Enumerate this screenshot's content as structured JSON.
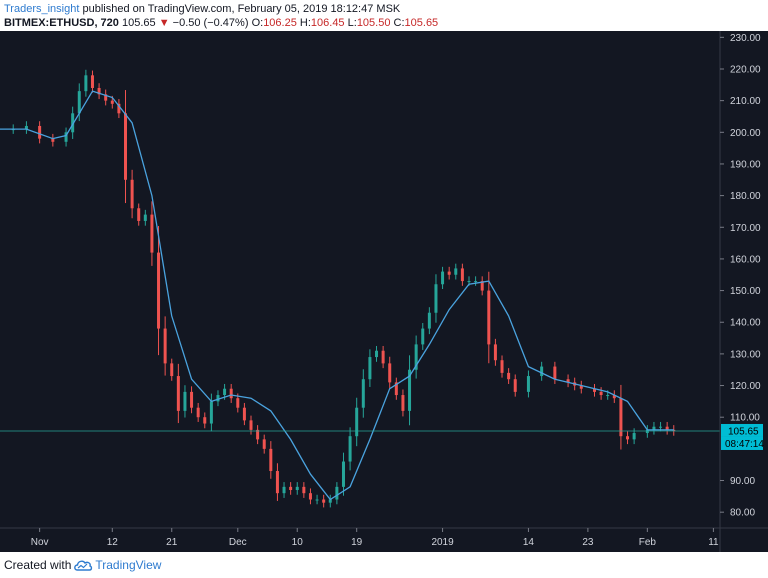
{
  "header": {
    "author": "Traders_insight",
    "published": " published on TradingView.com, February 05, 2019 18:12:47 MSK",
    "symbol": "BITMEX:ETHUSD, 720",
    "last": "105.65",
    "arrow": "▼",
    "change": "−0.50 (−0.47%)",
    "o_label": "O:",
    "o_value": "106.25",
    "h_label": "H:",
    "h_value": "106.45",
    "l_label": "L:",
    "l_value": "105.50",
    "c_label": "C:",
    "c_value": "105.65"
  },
  "footer": {
    "created_with": "Created with",
    "brand": "TradingView",
    "logo_icon": "tradingview-cloud-icon"
  },
  "colors": {
    "background": "#131722",
    "up": "#26a69a",
    "down": "#ef5350",
    "ma": "#4aa3df",
    "price_line": "#26a69a",
    "axis_text": "#d1d4dc",
    "price_badge": "#00bcd4",
    "time_badge": "#00bcd4"
  },
  "chart_data": {
    "type": "candlestick",
    "x_unit": "date (720-minute bars)",
    "x_range": [
      "2018-10-26",
      "2019-02-12"
    ],
    "y_range": [
      75,
      232
    ],
    "y_ticks": [
      "230.00",
      "220.00",
      "210.00",
      "200.00",
      "190.00",
      "180.00",
      "170.00",
      "160.00",
      "150.00",
      "140.00",
      "130.00",
      "120.00",
      "110.00",
      "90.00",
      "80.00"
    ],
    "y_tick_values": [
      230,
      220,
      210,
      200,
      190,
      180,
      170,
      160,
      150,
      140,
      130,
      120,
      110,
      90,
      80
    ],
    "x_ticks": [
      "Nov",
      "12",
      "21",
      "Dec",
      "10",
      "19",
      "2019",
      "14",
      "23",
      "Feb",
      "11"
    ],
    "x_tick_dates": [
      "2018-11-01",
      "2018-11-12",
      "2018-11-21",
      "2018-12-01",
      "2018-12-10",
      "2018-12-19",
      "2019-01-01",
      "2019-01-14",
      "2019-01-23",
      "2019-02-01",
      "2019-02-11"
    ],
    "current_price": 105.65,
    "current_price_label": "105.65",
    "countdown_label": "08:47:14",
    "grid": false,
    "close_series": {
      "dates": [
        "2018-10-26",
        "2018-10-28",
        "2018-10-30",
        "2018-11-01",
        "2018-11-03",
        "2018-11-05",
        "2018-11-06",
        "2018-11-07",
        "2018-11-08",
        "2018-11-09",
        "2018-11-10",
        "2018-11-11",
        "2018-11-12",
        "2018-11-13",
        "2018-11-14",
        "2018-11-15",
        "2018-11-16",
        "2018-11-17",
        "2018-11-18",
        "2018-11-19",
        "2018-11-20",
        "2018-11-21",
        "2018-11-22",
        "2018-11-23",
        "2018-11-24",
        "2018-11-25",
        "2018-11-26",
        "2018-11-27",
        "2018-11-28",
        "2018-11-29",
        "2018-11-30",
        "2018-12-01",
        "2018-12-02",
        "2018-12-03",
        "2018-12-04",
        "2018-12-05",
        "2018-12-06",
        "2018-12-07",
        "2018-12-08",
        "2018-12-09",
        "2018-12-10",
        "2018-12-11",
        "2018-12-12",
        "2018-12-13",
        "2018-12-14",
        "2018-12-15",
        "2018-12-16",
        "2018-12-17",
        "2018-12-18",
        "2018-12-19",
        "2018-12-20",
        "2018-12-21",
        "2018-12-22",
        "2018-12-23",
        "2018-12-24",
        "2018-12-25",
        "2018-12-26",
        "2018-12-27",
        "2018-12-28",
        "2018-12-29",
        "2018-12-30",
        "2018-12-31",
        "2019-01-01",
        "2019-01-02",
        "2019-01-03",
        "2019-01-04",
        "2019-01-05",
        "2019-01-06",
        "2019-01-07",
        "2019-01-08",
        "2019-01-09",
        "2019-01-10",
        "2019-01-11",
        "2019-01-12",
        "2019-01-14",
        "2019-01-16",
        "2019-01-18",
        "2019-01-20",
        "2019-01-21",
        "2019-01-22",
        "2019-01-24",
        "2019-01-25",
        "2019-01-26",
        "2019-01-27",
        "2019-01-28",
        "2019-01-29",
        "2019-01-30",
        "2019-02-01",
        "2019-02-02",
        "2019-02-03",
        "2019-02-04",
        "2019-02-05"
      ],
      "close": [
        201,
        201,
        202,
        198,
        197,
        200,
        206,
        213,
        218,
        214,
        212,
        210,
        209,
        206,
        185,
        176,
        172,
        174,
        162,
        138,
        127,
        123,
        112,
        118,
        113,
        110,
        108,
        115,
        117,
        119,
        116,
        113,
        109,
        106,
        103,
        100,
        93,
        86,
        88,
        87,
        88,
        86,
        84,
        84,
        83,
        84,
        88,
        96,
        104,
        113,
        122,
        129,
        131,
        127,
        121,
        117,
        112,
        125,
        133,
        138,
        143,
        152,
        156,
        155,
        157,
        153,
        153,
        153,
        150,
        133,
        128,
        124,
        122,
        118,
        123,
        126,
        122,
        121,
        120,
        119,
        118,
        117,
        117,
        116,
        104,
        103,
        105,
        106,
        107,
        107,
        106,
        105.65
      ]
    },
    "ma_series": {
      "name": "",
      "dates": [
        "2018-10-26",
        "2018-10-30",
        "2018-11-03",
        "2018-11-05",
        "2018-11-07",
        "2018-11-09",
        "2018-11-12",
        "2018-11-15",
        "2018-11-18",
        "2018-11-21",
        "2018-11-24",
        "2018-11-27",
        "2018-11-30",
        "2018-12-03",
        "2018-12-06",
        "2018-12-09",
        "2018-12-12",
        "2018-12-15",
        "2018-12-18",
        "2018-12-21",
        "2018-12-24",
        "2018-12-27",
        "2018-12-30",
        "2019-01-02",
        "2019-01-05",
        "2019-01-08",
        "2019-01-11",
        "2019-01-14",
        "2019-01-18",
        "2019-01-22",
        "2019-01-26",
        "2019-01-29",
        "2019-02-01",
        "2019-02-05"
      ],
      "values": [
        201,
        201,
        198,
        199,
        206,
        213,
        211,
        203,
        180,
        142,
        122,
        115,
        117,
        116,
        112,
        103,
        92,
        84,
        88,
        103,
        119,
        123,
        133,
        144,
        152,
        153,
        142,
        126,
        122,
        120,
        118,
        115,
        106,
        106
      ]
    }
  }
}
